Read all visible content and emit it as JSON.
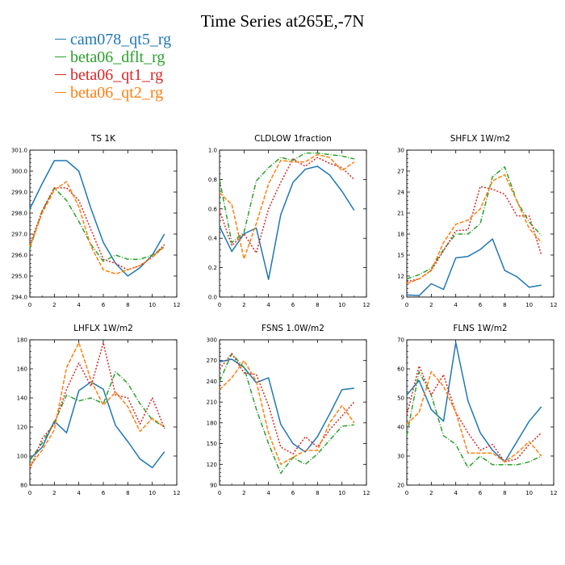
{
  "title": "Time Series at265E,-7N",
  "legend": [
    {
      "name": "cam078_qt5_rg",
      "color": "#1f77b4",
      "dash": ""
    },
    {
      "name": "beta06_dflt_rg",
      "color": "#2ca02c",
      "dash": "6,2,1,2"
    },
    {
      "name": "beta06_qt1_rg",
      "color": "#d62728",
      "dash": "2,2"
    },
    {
      "name": "beta06_qt2_rg",
      "color": "#ff7f0e",
      "dash": "5,2"
    }
  ],
  "chart_data": [
    {
      "type": "line",
      "title": "TS   1K",
      "x": [
        0,
        1,
        2,
        3,
        4,
        5,
        6,
        7,
        8,
        9,
        10,
        11
      ],
      "xlim": [
        0,
        12
      ],
      "xticks": [
        0,
        2,
        4,
        6,
        8,
        10,
        12
      ],
      "ylim": [
        294,
        301
      ],
      "yticks": [
        "294.0",
        "295.0",
        "296.0",
        "297.0",
        "298.0",
        "299.0",
        "300.0",
        "301.0"
      ],
      "series": [
        {
          "name": "cam078_qt5_rg",
          "values": [
            298.2,
            299.4,
            300.5,
            300.5,
            300.0,
            298.2,
            296.6,
            295.6,
            295.0,
            295.4,
            296.0,
            297.0
          ]
        },
        {
          "name": "beta06_dflt_rg",
          "values": [
            296.3,
            298.1,
            299.2,
            298.6,
            297.6,
            296.5,
            295.7,
            296.0,
            295.8,
            295.8,
            296.0,
            296.4
          ]
        },
        {
          "name": "beta06_qt1_rg",
          "values": [
            296.5,
            298.1,
            299.2,
            299.2,
            298.6,
            297.2,
            295.8,
            295.6,
            295.3,
            295.5,
            295.9,
            296.5
          ]
        },
        {
          "name": "beta06_qt2_rg",
          "values": [
            296.4,
            298.0,
            299.1,
            299.5,
            298.3,
            296.4,
            295.3,
            295.1,
            295.3,
            295.5,
            295.9,
            296.4
          ]
        }
      ]
    },
    {
      "type": "line",
      "title": "CLDLOW   1fraction",
      "x": [
        0,
        1,
        2,
        3,
        4,
        5,
        6,
        7,
        8,
        9,
        10,
        11
      ],
      "xlim": [
        0,
        12
      ],
      "xticks": [
        0,
        2,
        4,
        6,
        8,
        10,
        12
      ],
      "ylim": [
        0,
        1
      ],
      "yticks": [
        "0.0",
        "0.2",
        "0.4",
        "0.6",
        "0.8",
        "1.0"
      ],
      "series": [
        {
          "name": "cam078_qt5_rg",
          "values": [
            0.48,
            0.31,
            0.43,
            0.47,
            0.12,
            0.56,
            0.78,
            0.87,
            0.89,
            0.83,
            0.72,
            0.59
          ]
        },
        {
          "name": "beta06_dflt_rg",
          "values": [
            0.8,
            0.37,
            0.44,
            0.79,
            0.88,
            0.95,
            0.93,
            0.98,
            0.98,
            0.97,
            0.96,
            0.94
          ]
        },
        {
          "name": "beta06_qt1_rg",
          "values": [
            0.59,
            0.35,
            0.43,
            0.3,
            0.6,
            0.78,
            0.94,
            0.89,
            0.95,
            0.91,
            0.88,
            0.8
          ]
        },
        {
          "name": "beta06_qt2_rg",
          "values": [
            0.71,
            0.63,
            0.26,
            0.5,
            0.77,
            0.93,
            0.92,
            0.92,
            0.97,
            0.95,
            0.86,
            0.92
          ]
        }
      ]
    },
    {
      "type": "line",
      "title": "SHFLX   1W/m2",
      "x": [
        0,
        1,
        2,
        3,
        4,
        5,
        6,
        7,
        8,
        9,
        10,
        11
      ],
      "xlim": [
        0,
        12
      ],
      "xticks": [
        0,
        2,
        4,
        6,
        8,
        10,
        12
      ],
      "ylim": [
        9,
        30
      ],
      "yticks": [
        "9",
        "12",
        "15",
        "18",
        "21",
        "24",
        "27",
        "30"
      ],
      "series": [
        {
          "name": "cam078_qt5_rg",
          "values": [
            9.3,
            9.2,
            10.9,
            10.1,
            14.6,
            14.8,
            15.8,
            17.3,
            12.8,
            11.9,
            10.4,
            10.7
          ]
        },
        {
          "name": "beta06_dflt_rg",
          "values": [
            11.6,
            12.2,
            13.1,
            15.8,
            18.0,
            18.0,
            19.5,
            26.2,
            27.6,
            22.7,
            19.7,
            17.8
          ]
        },
        {
          "name": "beta06_qt1_rg",
          "values": [
            11.2,
            11.6,
            12.8,
            15.6,
            18.5,
            18.6,
            24.8,
            24.4,
            23.7,
            20.6,
            20.6,
            15.0
          ]
        },
        {
          "name": "beta06_qt2_rg",
          "values": [
            10.9,
            11.6,
            12.8,
            16.8,
            19.4,
            20.0,
            21.6,
            25.6,
            26.5,
            22.7,
            18.8,
            16.8
          ]
        }
      ]
    },
    {
      "type": "line",
      "title": "LHFLX   1W/m2",
      "x": [
        0,
        1,
        2,
        3,
        4,
        5,
        6,
        7,
        8,
        9,
        10,
        11
      ],
      "xlim": [
        0,
        12
      ],
      "xticks": [
        0,
        2,
        4,
        6,
        8,
        10,
        12
      ],
      "ylim": [
        80,
        180
      ],
      "yticks": [
        "80",
        "100",
        "120",
        "140",
        "160",
        "180"
      ],
      "series": [
        {
          "name": "cam078_qt5_rg",
          "values": [
            98,
            106,
            124,
            116,
            145,
            151,
            146,
            121,
            110,
            98,
            92,
            103
          ]
        },
        {
          "name": "beta06_dflt_rg",
          "values": [
            97,
            109,
            123,
            142,
            138,
            140,
            136,
            158,
            150,
            136,
            125,
            120
          ]
        },
        {
          "name": "beta06_qt1_rg",
          "values": [
            91,
            112,
            122,
            146,
            164,
            148,
            178,
            142,
            140,
            122,
            140,
            119
          ]
        },
        {
          "name": "beta06_qt2_rg",
          "values": [
            93,
            104,
            118,
            161,
            178,
            152,
            135,
            144,
            134,
            117,
            126,
            120
          ]
        }
      ]
    },
    {
      "type": "line",
      "title": "FSNS   1.0W/m2",
      "x": [
        0,
        1,
        2,
        3,
        4,
        5,
        6,
        7,
        8,
        9,
        10,
        11
      ],
      "xlim": [
        0,
        12
      ],
      "xticks": [
        0,
        2,
        4,
        6,
        8,
        10,
        12
      ],
      "ylim": [
        90,
        300
      ],
      "yticks": [
        "90",
        "120",
        "150",
        "180",
        "210",
        "240",
        "270",
        "300"
      ],
      "series": [
        {
          "name": "cam078_qt5_rg",
          "values": [
            268,
            272,
            260,
            238,
            245,
            178,
            150,
            138,
            160,
            193,
            228,
            230
          ]
        },
        {
          "name": "beta06_dflt_rg",
          "values": [
            240,
            280,
            260,
            200,
            150,
            107,
            130,
            120,
            135,
            155,
            175,
            177
          ]
        },
        {
          "name": "beta06_qt1_rg",
          "values": [
            258,
            280,
            252,
            250,
            205,
            145,
            135,
            160,
            145,
            170,
            190,
            210
          ]
        },
        {
          "name": "beta06_qt2_rg",
          "values": [
            228,
            245,
            270,
            240,
            165,
            120,
            130,
            140,
            140,
            180,
            205,
            180
          ]
        }
      ]
    },
    {
      "type": "line",
      "title": "FLNS   1W/m2",
      "x": [
        0,
        1,
        2,
        3,
        4,
        5,
        6,
        7,
        8,
        9,
        10,
        11
      ],
      "xlim": [
        0,
        12
      ],
      "xticks": [
        0,
        2,
        4,
        6,
        8,
        10,
        12
      ],
      "ylim": [
        20,
        70
      ],
      "yticks": [
        "20",
        "30",
        "40",
        "50",
        "60",
        "70"
      ],
      "series": [
        {
          "name": "cam078_qt5_rg",
          "values": [
            51,
            56,
            46,
            42,
            69,
            49,
            38,
            32,
            28,
            35,
            42,
            47
          ]
        },
        {
          "name": "beta06_dflt_rg",
          "values": [
            37,
            59,
            51,
            37,
            34,
            26,
            30,
            27,
            27,
            27,
            28,
            30
          ]
        },
        {
          "name": "beta06_qt1_rg",
          "values": [
            44,
            61,
            51,
            58,
            45,
            38,
            32,
            34,
            28,
            29,
            34,
            38
          ]
        },
        {
          "name": "beta06_qt2_rg",
          "values": [
            41,
            45,
            59,
            54,
            45,
            31,
            31,
            31,
            28,
            31,
            35,
            30
          ]
        }
      ]
    }
  ]
}
